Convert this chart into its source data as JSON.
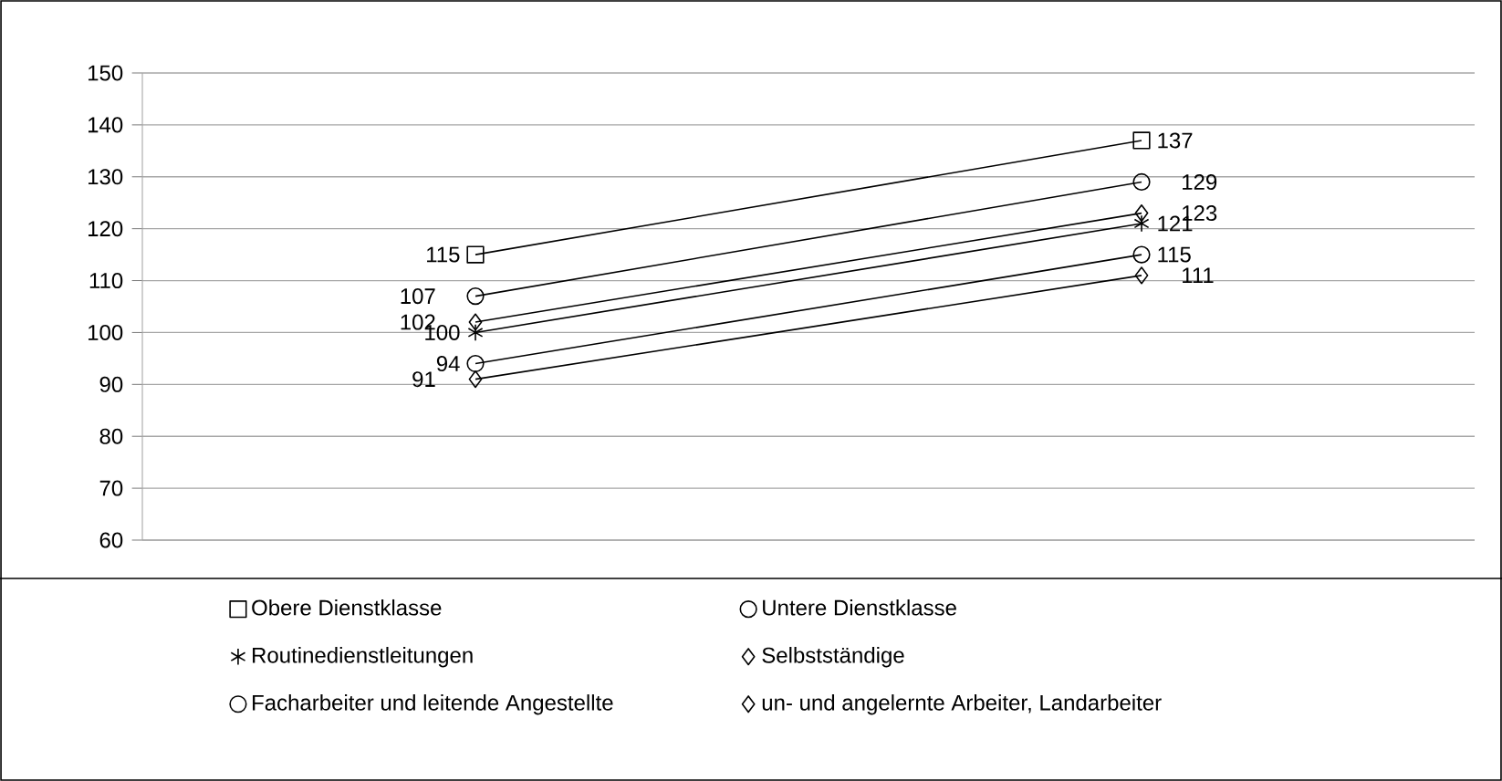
{
  "chart_data": {
    "type": "line",
    "categories": [
      null,
      null
    ],
    "series": [
      {
        "name": "Obere Dienstklasse",
        "color": "#000000",
        "marker": "square",
        "values": [
          115,
          137
        ]
      },
      {
        "name": "Untere Dienstklasse",
        "color": "#000000",
        "marker": "circle",
        "values": [
          107,
          129
        ]
      },
      {
        "name": "Routinedienstleitungen",
        "color": "#000000",
        "marker": "cross",
        "values": [
          100,
          121
        ]
      },
      {
        "name": "Selbstständige",
        "color": "#000000",
        "marker": "diamond",
        "values": [
          102,
          123
        ]
      },
      {
        "name": "Facharbeiter und leitende Angestellte",
        "color": "#000000",
        "marker": "circle",
        "values": [
          94,
          115
        ]
      },
      {
        "name": "un- und angelernte Arbeiter, Landarbeiter",
        "color": "#000000",
        "marker": "diamond",
        "values": [
          91,
          111
        ]
      }
    ],
    "ylim": [
      60,
      150
    ],
    "yticks": [
      60,
      70,
      80,
      90,
      100,
      110,
      120,
      130,
      140,
      150
    ],
    "grid": "y",
    "legend": "bottom",
    "data_labels": true,
    "line_style": "solid"
  }
}
